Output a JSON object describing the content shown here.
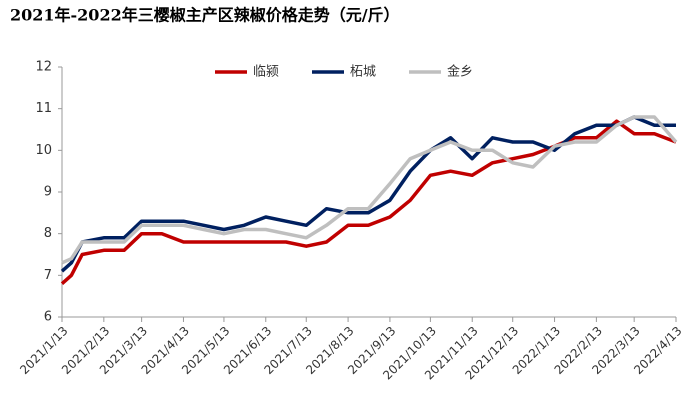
{
  "chart_data": {
    "type": "line",
    "title": "2021年-2022年三樱椒主产区辣椒价格走势（元/斤）",
    "x": [
      "2021/1/13",
      "2021/1/20",
      "2021/1/28",
      "2021/2/13",
      "2021/2/28",
      "2021/3/13",
      "2021/3/28",
      "2021/4/13",
      "2021/4/28",
      "2021/5/13",
      "2021/5/28",
      "2021/6/13",
      "2021/6/28",
      "2021/7/13",
      "2021/7/28",
      "2021/8/13",
      "2021/8/28",
      "2021/9/13",
      "2021/9/28",
      "2021/10/13",
      "2021/10/28",
      "2021/11/13",
      "2021/11/28",
      "2021/12/13",
      "2021/12/28",
      "2022/1/13",
      "2022/1/28",
      "2022/2/13",
      "2022/2/28",
      "2022/3/13",
      "2022/3/28",
      "2022/4/13"
    ],
    "series": [
      {
        "name": "临颍",
        "color": "#c00000",
        "values": [
          6.8,
          7.0,
          7.5,
          7.6,
          7.6,
          8.0,
          8.0,
          7.8,
          7.8,
          7.8,
          7.8,
          7.8,
          7.8,
          7.7,
          7.8,
          8.2,
          8.2,
          8.4,
          8.8,
          9.4,
          9.5,
          9.4,
          9.7,
          9.8,
          9.9,
          10.1,
          10.3,
          10.3,
          10.7,
          10.4,
          10.4,
          10.2
        ]
      },
      {
        "name": "柘城",
        "color": "#002060",
        "values": [
          7.1,
          7.3,
          7.8,
          7.9,
          7.9,
          8.3,
          8.3,
          8.3,
          8.2,
          8.1,
          8.2,
          8.4,
          8.3,
          8.2,
          8.6,
          8.5,
          8.5,
          8.8,
          9.5,
          10.0,
          10.3,
          9.8,
          10.3,
          10.2,
          10.2,
          10.0,
          10.4,
          10.6,
          10.6,
          10.8,
          10.6,
          10.6
        ]
      },
      {
        "name": "金乡",
        "color": "#bfbfbf",
        "values": [
          7.3,
          7.4,
          7.8,
          7.8,
          7.8,
          8.2,
          8.2,
          8.2,
          8.1,
          8.0,
          8.1,
          8.1,
          8.0,
          7.9,
          8.2,
          8.6,
          8.6,
          9.2,
          9.8,
          10.0,
          10.2,
          10.0,
          10.0,
          9.7,
          9.6,
          10.1,
          10.2,
          10.2,
          10.6,
          10.8,
          10.8,
          10.2
        ]
      }
    ],
    "ylim": [
      6,
      12
    ],
    "yticks": [
      6,
      7,
      8,
      9,
      10,
      11,
      12
    ],
    "xlim": [
      "2021/1/13",
      "2022/4/13"
    ],
    "xticks": [
      "2021/1/13",
      "2021/2/13",
      "2021/3/13",
      "2021/4/13",
      "2021/5/13",
      "2021/6/13",
      "2021/7/13",
      "2021/8/13",
      "2021/9/13",
      "2021/10/13",
      "2021/11/13",
      "2021/12/13",
      "2022/1/13",
      "2022/2/13",
      "2022/3/13",
      "2022/4/13"
    ]
  }
}
